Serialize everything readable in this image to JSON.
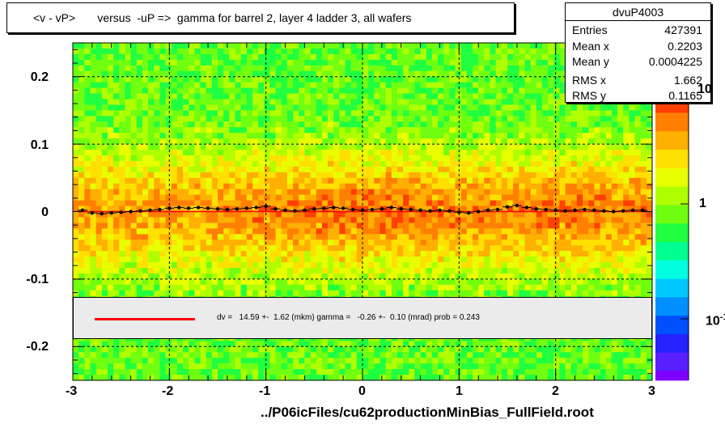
{
  "title": "<v - vP>       versus  -uP =>  gamma for barrel 2, layer 4 ladder 3, all wafers",
  "stats": {
    "name": "dvuP4003",
    "rows": [
      {
        "label": "Entries",
        "value": "427391"
      },
      {
        "label": "Mean x",
        "value": "0.2203"
      },
      {
        "label": "Mean y",
        "value": "0.0004225"
      },
      {
        "label": "RMS x",
        "value": "1.662"
      },
      {
        "label": "RMS y",
        "value": "0.1165"
      }
    ]
  },
  "fit_text": "dv =   14.59 +-  1.62 (mkm) gamma =   -0.26 +-  0.10 (mrad) prob = 0.243",
  "xlabel": "../P06icFiles/cu62productionMinBias_FullField.root",
  "colors": {
    "fit_line": "#ff0000",
    "profile_points": "#000000",
    "palette": [
      "#7f00ff",
      "#5a1fff",
      "#2222ff",
      "#0050ff",
      "#0090ff",
      "#00c8ff",
      "#00ffe0",
      "#00ff90",
      "#20ff40",
      "#70ff10",
      "#b0ff00",
      "#e8ff00",
      "#ffe000",
      "#ffb000",
      "#ff8000",
      "#ff4000"
    ]
  },
  "chart_data": {
    "type": "heatmap",
    "title": "<v - vP>       versus  -uP =>  gamma for barrel 2, layer 4 ladder 3, all wafers",
    "xlabel": "../P06icFiles/cu62productionMinBias_FullField.root",
    "ylabel": "",
    "xlim": [
      -3,
      3
    ],
    "ylim": [
      -0.25,
      0.25
    ],
    "x_ticks": [
      "-3",
      "-2",
      "-1",
      "0",
      "1",
      "2",
      "3"
    ],
    "y_ticks": [
      "-0.2",
      "-0.1",
      "0",
      "0.1",
      "0.2"
    ],
    "z_scale": "log",
    "z_ticks": [
      "10",
      "1",
      "10"
    ],
    "z_tick_exponents": [
      "",
      "",
      "-1"
    ],
    "grid": true,
    "profile": {
      "x": [
        -2.9,
        -2.8,
        -2.7,
        -2.6,
        -2.5,
        -2.4,
        -2.3,
        -2.2,
        -2.1,
        -2.0,
        -1.9,
        -1.8,
        -1.7,
        -1.6,
        -1.5,
        -1.4,
        -1.3,
        -1.2,
        -1.1,
        -1.0,
        -0.9,
        -0.8,
        -0.7,
        -0.6,
        -0.5,
        -0.4,
        -0.3,
        -0.2,
        -0.1,
        0.0,
        0.1,
        0.2,
        0.3,
        0.4,
        0.5,
        0.6,
        0.7,
        0.8,
        0.9,
        1.0,
        1.1,
        1.2,
        1.3,
        1.4,
        1.5,
        1.6,
        1.7,
        1.8,
        1.9,
        2.0,
        2.1,
        2.2,
        2.3,
        2.4,
        2.5,
        2.6,
        2.7,
        2.8,
        2.9
      ],
      "y": [
        0.002,
        -0.002,
        -0.003,
        -0.002,
        -0.001,
        0.0,
        0.001,
        0.002,
        0.003,
        0.005,
        0.006,
        0.005,
        0.006,
        0.005,
        0.004,
        0.003,
        0.004,
        0.005,
        0.006,
        0.008,
        0.004,
        0.002,
        0.001,
        0.002,
        0.004,
        0.005,
        0.006,
        0.005,
        0.003,
        0.002,
        0.003,
        0.004,
        0.006,
        0.004,
        0.003,
        0.002,
        0.001,
        0.002,
        0.001,
        -0.001,
        -0.002,
        0.0,
        0.002,
        0.003,
        0.007,
        0.009,
        0.006,
        0.004,
        0.003,
        0.002,
        0.001,
        0.002,
        0.003,
        0.002,
        0.001,
        0.0,
        0.001,
        0.002,
        0.002
      ]
    },
    "fit": {
      "dv_mkm": 14.59,
      "dv_err": 1.62,
      "gamma_mrad": -0.26,
      "gamma_err": 0.1,
      "prob": 0.243
    }
  }
}
